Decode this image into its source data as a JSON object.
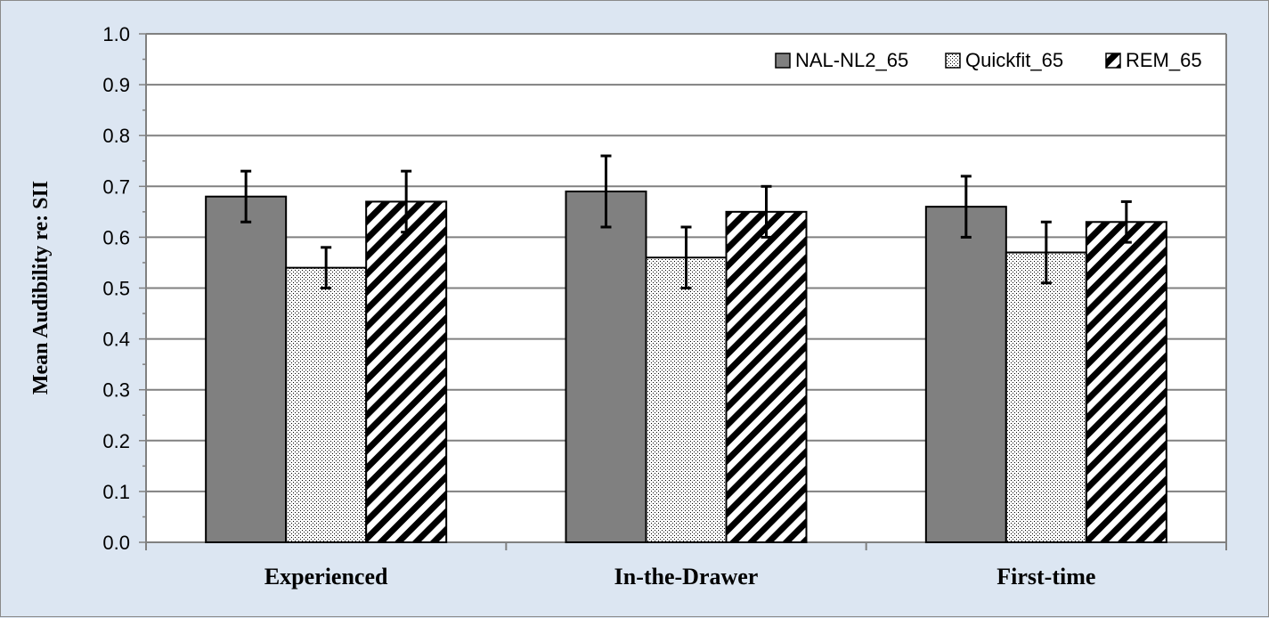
{
  "chart_data": {
    "type": "bar",
    "title": "",
    "xlabel": "",
    "ylabel": "Mean Audibility re: SII",
    "ylim": [
      0,
      1.0
    ],
    "ytick_step": 0.1,
    "yticks": [
      "0.0",
      "0.1",
      "0.2",
      "0.3",
      "0.4",
      "0.5",
      "0.6",
      "0.7",
      "0.8",
      "0.9",
      "1.0"
    ],
    "grid": true,
    "legend_position": "top-right",
    "categories": [
      "Experienced",
      "In-the-Drawer",
      "First-time"
    ],
    "series": [
      {
        "name": "NAL-NL2_65",
        "values": [
          0.68,
          0.69,
          0.66
        ],
        "error_low": [
          0.63,
          0.62,
          0.6
        ],
        "error_high": [
          0.73,
          0.76,
          0.72
        ],
        "fill": "solid-gray",
        "color": "#808080"
      },
      {
        "name": "Quickfit_65",
        "values": [
          0.54,
          0.56,
          0.57
        ],
        "error_low": [
          0.5,
          0.5,
          0.51
        ],
        "error_high": [
          0.58,
          0.62,
          0.63
        ],
        "fill": "dotted",
        "color": "#ffffff"
      },
      {
        "name": "REM_65",
        "values": [
          0.67,
          0.65,
          0.63
        ],
        "error_low": [
          0.61,
          0.6,
          0.59
        ],
        "error_high": [
          0.73,
          0.7,
          0.67
        ],
        "fill": "diagonal-stripes",
        "color": "#000000"
      }
    ]
  },
  "colors": {
    "background": "#dce6f2",
    "plot_area": "#ffffff",
    "gridline": "#808080",
    "axis": "#808080"
  }
}
